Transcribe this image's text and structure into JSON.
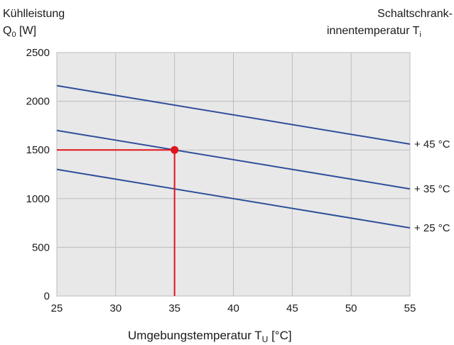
{
  "chart_data": {
    "type": "line",
    "ylabel_line1": "Kühlleistung",
    "ylabel_symbol": "Q",
    "ylabel_sub": "0",
    "ylabel_unit": " [W]",
    "right_title_line1": "Schaltschrank-",
    "right_title_line2": "innentemperatur T",
    "right_title_sub": "i",
    "xlabel": "Umgebungstemperatur T",
    "xlabel_sub": "U",
    "xlabel_unit": " [°C]",
    "xlim": [
      25,
      55
    ],
    "ylim": [
      0,
      2500
    ],
    "xticks": [
      "25",
      "30",
      "35",
      "40",
      "45",
      "50",
      "55"
    ],
    "yticks": [
      "0",
      "500",
      "1000",
      "1500",
      "2000",
      "2500"
    ],
    "grid": true,
    "series": [
      {
        "name": "+ 45 °C",
        "x": [
          25,
          55
        ],
        "y": [
          2160,
          1560
        ]
      },
      {
        "name": "+ 35 °C",
        "x": [
          25,
          55
        ],
        "y": [
          1700,
          1100
        ]
      },
      {
        "name": "+ 25 °C",
        "x": [
          25,
          55
        ],
        "y": [
          1300,
          700
        ]
      }
    ],
    "marker": {
      "x": 35,
      "y": 1500
    },
    "colors": {
      "plot_bg": "#e8e8e8",
      "grid": "#bdbdbd",
      "line": "#2f4f9a",
      "marker": "#e3131b"
    }
  }
}
